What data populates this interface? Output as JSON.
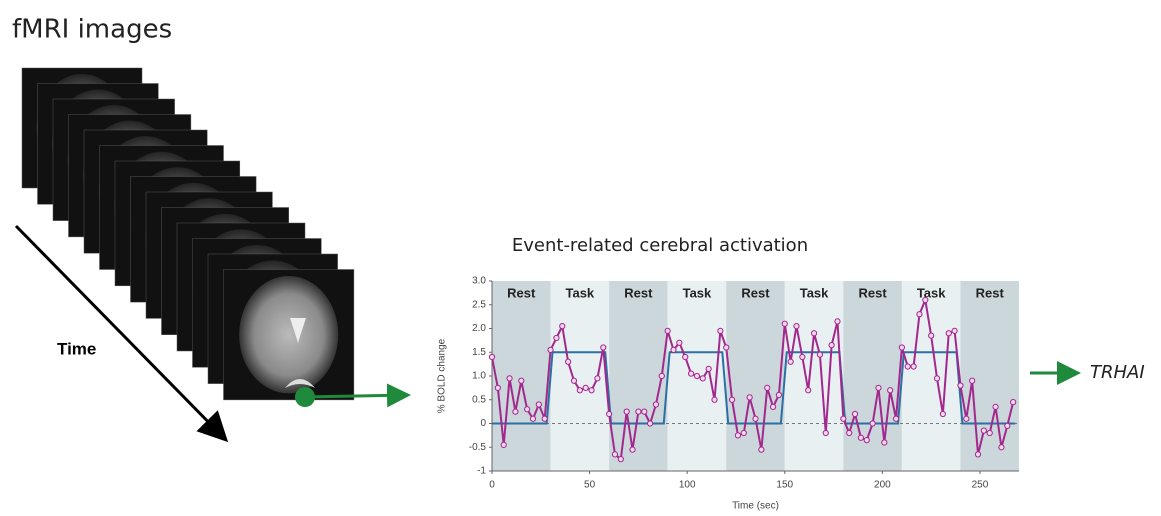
{
  "title": "fMRI images",
  "time_label": "Time",
  "output_label": "TRHAI",
  "chart_data": {
    "type": "line",
    "title": "Event-related cerebral activation",
    "x_label": "Time (sec)",
    "y_label": "% BOLD change",
    "xlim": [
      0,
      270
    ],
    "ylim": [
      -1,
      3
    ],
    "xticks": [
      0,
      50,
      100,
      150,
      200,
      250
    ],
    "yticks": [
      -1,
      -0.5,
      0,
      0.5,
      {
        "value": 1,
        "label": "1.0"
      },
      1.5,
      {
        "value": 2,
        "label": "2.0"
      },
      2.5,
      {
        "value": 3,
        "label": "3.0"
      }
    ],
    "blocks": [
      {
        "label": "Rest",
        "start": 0,
        "end": 30
      },
      {
        "label": "Task",
        "start": 30,
        "end": 60
      },
      {
        "label": "Rest",
        "start": 60,
        "end": 90
      },
      {
        "label": "Task",
        "start": 90,
        "end": 120
      },
      {
        "label": "Rest",
        "start": 120,
        "end": 150
      },
      {
        "label": "Task",
        "start": 150,
        "end": 180
      },
      {
        "label": "Rest",
        "start": 180,
        "end": 210
      },
      {
        "label": "Task",
        "start": 210,
        "end": 240
      },
      {
        "label": "Rest",
        "start": 240,
        "end": 270
      }
    ],
    "series": [
      {
        "color": "#2b6fa3",
        "x": [
          0,
          28,
          31,
          58,
          61,
          88,
          91,
          118,
          121,
          148,
          151,
          178,
          181,
          208,
          211,
          238,
          241,
          268
        ],
        "values": [
          0,
          0,
          1.5,
          1.5,
          0,
          0,
          1.5,
          1.5,
          0,
          0,
          1.5,
          1.5,
          0,
          0,
          1.5,
          1.5,
          0,
          0
        ]
      },
      {
        "color": "#a3288e",
        "x": [
          0,
          3,
          6,
          9,
          12,
          15,
          18,
          21,
          24,
          27,
          30,
          33,
          36,
          39,
          42,
          45,
          48,
          51,
          54,
          57,
          60,
          63,
          66,
          69,
          72,
          75,
          78,
          81,
          84,
          87,
          90,
          93,
          96,
          99,
          102,
          105,
          108,
          111,
          114,
          117,
          120,
          123,
          126,
          129,
          132,
          135,
          138,
          141,
          144,
          147,
          150,
          153,
          156,
          159,
          162,
          165,
          168,
          171,
          174,
          177,
          180,
          183,
          186,
          189,
          192,
          195,
          198,
          201,
          204,
          207,
          210,
          213,
          216,
          219,
          222,
          225,
          228,
          231,
          234,
          237,
          240,
          243,
          246,
          249,
          252,
          255,
          258,
          261,
          264,
          267
        ],
        "values": [
          1.4,
          0.75,
          -0.45,
          0.95,
          0.25,
          0.9,
          0.3,
          0.1,
          0.4,
          0.1,
          1.55,
          1.8,
          2.05,
          1.3,
          0.9,
          0.7,
          0.75,
          0.7,
          0.95,
          1.6,
          0.2,
          -0.65,
          -0.75,
          0.25,
          -0.55,
          0.25,
          0.25,
          0,
          0.4,
          1.0,
          1.95,
          1.55,
          1.7,
          1.4,
          1.05,
          1.0,
          0.95,
          1.15,
          0.5,
          1.95,
          1.6,
          0.5,
          -0.25,
          -0.2,
          0.55,
          0.1,
          -0.55,
          0.75,
          0.35,
          0.6,
          2.1,
          1.3,
          2.05,
          1.4,
          0.7,
          1.9,
          1.45,
          -0.2,
          1.65,
          2.15,
          0.1,
          -0.2,
          0.2,
          -0.3,
          -0.35,
          0,
          0.75,
          -0.4,
          0.7,
          0.1,
          1.6,
          1.2,
          1.2,
          2.3,
          2.6,
          1.85,
          0.95,
          0.2,
          1.9,
          1.95,
          0.8,
          0.1,
          0.9,
          -0.65,
          -0.15,
          -0.2,
          0.35,
          -0.5,
          -0.05,
          0.45
        ]
      }
    ]
  }
}
